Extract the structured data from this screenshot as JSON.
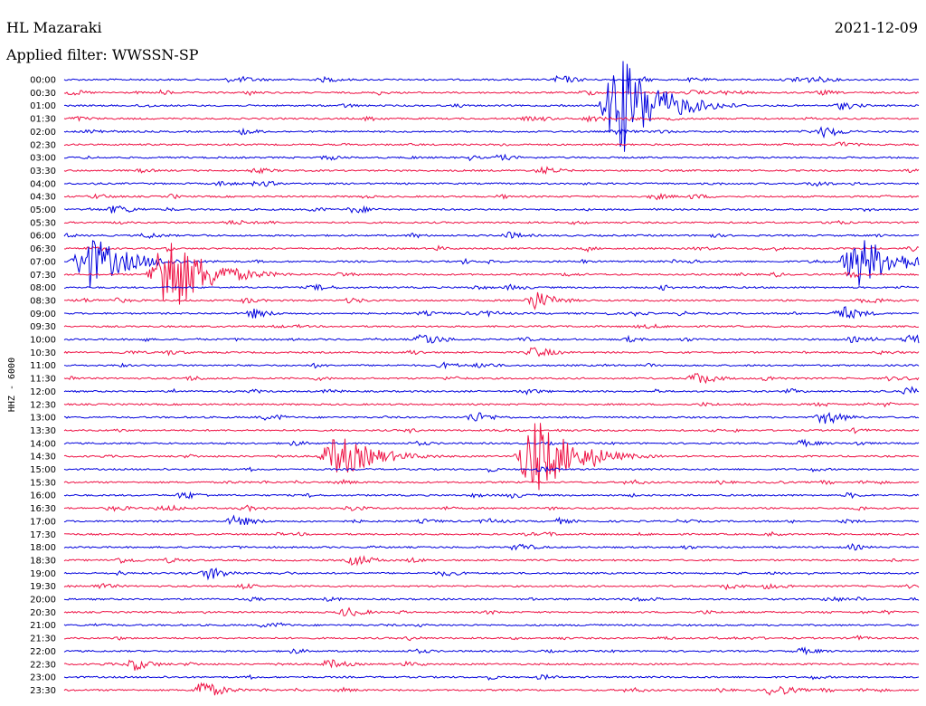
{
  "header": {
    "station": "HL Mazaraki",
    "date": "2021-12-09",
    "filter_label": "Applied filter: WWSSN-SP"
  },
  "chart_data": {
    "type": "line",
    "title": "HL Mazaraki",
    "date": "2021-12-09",
    "filter": "WWSSN-SP",
    "ylabel": "HHZ - 6000",
    "xlabel": "",
    "row_interval_minutes": 30,
    "row_labels": [
      "00:00",
      "00:30",
      "01:00",
      "01:30",
      "02:00",
      "02:30",
      "03:00",
      "03:30",
      "04:00",
      "04:30",
      "05:00",
      "05:30",
      "06:00",
      "06:30",
      "07:00",
      "07:30",
      "08:00",
      "08:30",
      "09:00",
      "09:30",
      "10:00",
      "10:30",
      "11:00",
      "11:30",
      "12:00",
      "12:30",
      "13:00",
      "13:30",
      "14:00",
      "14:30",
      "15:00",
      "15:30",
      "16:00",
      "16:30",
      "17:00",
      "17:30",
      "18:00",
      "18:30",
      "19:00",
      "19:30",
      "20:00",
      "20:30",
      "21:00",
      "21:30",
      "22:00",
      "22:30",
      "23:00",
      "23:30"
    ],
    "trace_colors": [
      "#0000dd",
      "#ee1144"
    ],
    "events": [
      {
        "row": 0,
        "pos": 0.58,
        "amp": 0.55
      },
      {
        "row": 0,
        "pos": 0.86,
        "amp": 0.55
      },
      {
        "row": 1,
        "pos": 0.01,
        "amp": 0.35
      },
      {
        "row": 1,
        "pos": 0.61,
        "amp": 0.35
      },
      {
        "row": 2,
        "pos": 0.65,
        "amp": 6.0
      },
      {
        "row": 2,
        "pos": 0.91,
        "amp": 0.5
      },
      {
        "row": 4,
        "pos": 0.21,
        "amp": 0.4
      },
      {
        "row": 4,
        "pos": 0.89,
        "amp": 0.7
      },
      {
        "row": 7,
        "pos": 0.56,
        "amp": 0.5
      },
      {
        "row": 10,
        "pos": 0.06,
        "amp": 0.6
      },
      {
        "row": 10,
        "pos": 0.34,
        "amp": 0.5
      },
      {
        "row": 12,
        "pos": 0.52,
        "amp": 0.45
      },
      {
        "row": 14,
        "pos": 0.03,
        "amp": 3.0
      },
      {
        "row": 14,
        "pos": 0.93,
        "amp": 3.0
      },
      {
        "row": 15,
        "pos": 0.12,
        "amp": 5.0
      },
      {
        "row": 17,
        "pos": 0.55,
        "amp": 1.2
      },
      {
        "row": 18,
        "pos": 0.22,
        "amp": 0.6
      },
      {
        "row": 18,
        "pos": 0.91,
        "amp": 0.9
      },
      {
        "row": 20,
        "pos": 0.42,
        "amp": 0.8
      },
      {
        "row": 20,
        "pos": 0.99,
        "amp": 0.7
      },
      {
        "row": 21,
        "pos": 0.55,
        "amp": 0.7
      },
      {
        "row": 23,
        "pos": 0.74,
        "amp": 0.8
      },
      {
        "row": 24,
        "pos": 0.99,
        "amp": 0.6
      },
      {
        "row": 26,
        "pos": 0.48,
        "amp": 0.7
      },
      {
        "row": 26,
        "pos": 0.89,
        "amp": 0.9
      },
      {
        "row": 29,
        "pos": 0.32,
        "amp": 2.5
      },
      {
        "row": 29,
        "pos": 0.55,
        "amp": 4.5
      },
      {
        "row": 29,
        "pos": 0.62,
        "amp": 1.2
      },
      {
        "row": 32,
        "pos": 0.14,
        "amp": 0.5
      },
      {
        "row": 34,
        "pos": 0.2,
        "amp": 0.7
      },
      {
        "row": 36,
        "pos": 0.53,
        "amp": 0.5
      },
      {
        "row": 37,
        "pos": 0.34,
        "amp": 0.7
      },
      {
        "row": 38,
        "pos": 0.17,
        "amp": 0.8
      },
      {
        "row": 41,
        "pos": 0.33,
        "amp": 0.6
      },
      {
        "row": 45,
        "pos": 0.08,
        "amp": 0.8
      },
      {
        "row": 45,
        "pos": 0.31,
        "amp": 0.6
      },
      {
        "row": 47,
        "pos": 0.16,
        "amp": 1.2
      },
      {
        "row": 47,
        "pos": 0.83,
        "amp": 0.8
      }
    ]
  }
}
